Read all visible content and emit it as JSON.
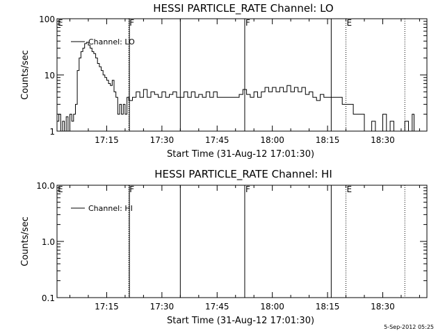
{
  "footer_date": "5-Sep-2012 05:25",
  "colors": {
    "background": "#ffffff",
    "ink": "#000000"
  },
  "chart_data": [
    {
      "type": "line",
      "title": "HESSI PARTICLE_RATE Channel: LO",
      "xlabel": "Start Time (31-Aug-12 17:01:30)",
      "ylabel": "Counts/sec",
      "yscale": "log",
      "ylim": [
        1,
        100
      ],
      "xlim": [
        "17:01:30",
        "18:42:00"
      ],
      "xticks": [
        "17:15",
        "17:30",
        "17:45",
        "18:00",
        "18:15",
        "18:30"
      ],
      "yticks": [
        "1",
        "10",
        "100"
      ],
      "legend": {
        "position": "top-left",
        "entries": [
          "Channel: LO"
        ]
      },
      "grid": false,
      "series": [
        {
          "name": "Channel: LO",
          "points": [
            [
              "17:01:30",
              1.5
            ],
            [
              "17:02:00",
              2
            ],
            [
              "17:02:30",
              1
            ],
            [
              "17:03:00",
              1.5
            ],
            [
              "17:03:30",
              1
            ],
            [
              "17:04:00",
              1.8
            ],
            [
              "17:04:30",
              1
            ],
            [
              "17:05:00",
              2
            ],
            [
              "17:05:30",
              1.5
            ],
            [
              "17:06:00",
              2
            ],
            [
              "17:06:30",
              3
            ],
            [
              "17:07:00",
              12
            ],
            [
              "17:07:30",
              20
            ],
            [
              "17:08:00",
              26
            ],
            [
              "17:08:30",
              30
            ],
            [
              "17:09:00",
              36
            ],
            [
              "17:09:30",
              38
            ],
            [
              "17:10:00",
              34
            ],
            [
              "17:10:30",
              30
            ],
            [
              "17:11:00",
              26
            ],
            [
              "17:11:30",
              24
            ],
            [
              "17:12:00",
              20
            ],
            [
              "17:12:30",
              16
            ],
            [
              "17:13:00",
              14
            ],
            [
              "17:13:30",
              12
            ],
            [
              "17:14:00",
              10
            ],
            [
              "17:14:30",
              9
            ],
            [
              "17:15:00",
              8
            ],
            [
              "17:15:30",
              7
            ],
            [
              "17:16:00",
              6.5
            ],
            [
              "17:16:30",
              8
            ],
            [
              "17:17:00",
              5
            ],
            [
              "17:17:30",
              4
            ],
            [
              "17:18:00",
              2
            ],
            [
              "17:18:30",
              3
            ],
            [
              "17:19:00",
              2
            ],
            [
              "17:19:30",
              3
            ],
            [
              "17:20:00",
              2
            ],
            [
              "17:20:30",
              4
            ],
            [
              "17:21:00",
              3.5
            ],
            [
              "17:22:00",
              4
            ],
            [
              "17:23:00",
              5
            ],
            [
              "17:24:00",
              4
            ],
            [
              "17:25:00",
              5.5
            ],
            [
              "17:26:00",
              4
            ],
            [
              "17:27:00",
              5
            ],
            [
              "17:28:00",
              4.5
            ],
            [
              "17:29:00",
              4
            ],
            [
              "17:30:00",
              5
            ],
            [
              "17:31:00",
              4
            ],
            [
              "17:32:00",
              4.5
            ],
            [
              "17:33:00",
              5
            ],
            [
              "17:34:00",
              4
            ],
            [
              "17:35:00",
              4
            ],
            [
              "17:36:00",
              5
            ],
            [
              "17:37:00",
              4
            ],
            [
              "17:38:00",
              5
            ],
            [
              "17:39:00",
              4
            ],
            [
              "17:40:00",
              4.5
            ],
            [
              "17:41:00",
              4
            ],
            [
              "17:42:00",
              5
            ],
            [
              "17:43:00",
              4
            ],
            [
              "17:44:00",
              5
            ],
            [
              "17:45:00",
              4
            ],
            [
              "17:46:00",
              4
            ],
            [
              "17:47:00",
              4
            ],
            [
              "17:48:00",
              4
            ],
            [
              "17:49:00",
              4
            ],
            [
              "17:50:00",
              4
            ],
            [
              "17:51:00",
              4.5
            ],
            [
              "17:52:00",
              5.5
            ],
            [
              "17:53:00",
              4.5
            ],
            [
              "17:54:00",
              4
            ],
            [
              "17:55:00",
              5
            ],
            [
              "17:56:00",
              4
            ],
            [
              "17:57:00",
              5
            ],
            [
              "17:58:00",
              6
            ],
            [
              "17:59:00",
              5
            ],
            [
              "18:00:00",
              6
            ],
            [
              "18:01:00",
              5
            ],
            [
              "18:02:00",
              6
            ],
            [
              "18:03:00",
              5
            ],
            [
              "18:04:00",
              6.5
            ],
            [
              "18:05:00",
              5
            ],
            [
              "18:06:00",
              6
            ],
            [
              "18:07:00",
              5
            ],
            [
              "18:08:00",
              6
            ],
            [
              "18:09:00",
              4.5
            ],
            [
              "18:10:00",
              5
            ],
            [
              "18:11:00",
              4
            ],
            [
              "18:12:00",
              3.5
            ],
            [
              "18:13:00",
              4.5
            ],
            [
              "18:14:00",
              4
            ],
            [
              "18:15:00",
              4
            ],
            [
              "18:16:00",
              4
            ],
            [
              "18:17:00",
              4
            ],
            [
              "18:18:00",
              4
            ],
            [
              "18:19:00",
              3
            ],
            [
              "18:20:00",
              3
            ],
            [
              "18:21:00",
              3
            ],
            [
              "18:22:00",
              2
            ],
            [
              "18:23:00",
              2
            ],
            [
              "18:24:00",
              2
            ],
            [
              "18:25:00",
              1
            ],
            [
              "18:26:00",
              1
            ],
            [
              "18:27:00",
              1.5
            ],
            [
              "18:28:00",
              1
            ],
            [
              "18:29:00",
              1
            ],
            [
              "18:30:00",
              2
            ],
            [
              "18:31:00",
              1
            ],
            [
              "18:32:00",
              1.5
            ],
            [
              "18:33:00",
              1
            ],
            [
              "18:34:00",
              1
            ],
            [
              "18:35:00",
              1
            ],
            [
              "18:36:00",
              1.5
            ],
            [
              "18:37:00",
              1
            ],
            [
              "18:38:00",
              2
            ],
            [
              "18:38:30",
              1
            ]
          ]
        }
      ],
      "markers": [
        {
          "time": "17:01:30",
          "label": "E",
          "style": "none"
        },
        {
          "time": "17:21:00",
          "label": "F",
          "style": "dotted"
        },
        {
          "time": "17:21:10",
          "label": "",
          "style": "solid"
        },
        {
          "time": "17:35:00",
          "label": "",
          "style": "solid"
        },
        {
          "time": "17:52:30",
          "label": "F",
          "style": "solid"
        },
        {
          "time": "18:16:00",
          "label": "",
          "style": "solid"
        },
        {
          "time": "18:20:00",
          "label": "E",
          "style": "dotted"
        },
        {
          "time": "18:36:00",
          "label": "",
          "style": "dotted"
        }
      ]
    },
    {
      "type": "line",
      "title": "HESSI PARTICLE_RATE Channel: HI",
      "xlabel": "Start Time (31-Aug-12 17:01:30)",
      "ylabel": "Counts/sec",
      "yscale": "log",
      "ylim": [
        0.1,
        10.0
      ],
      "xlim": [
        "17:01:30",
        "18:42:00"
      ],
      "xticks": [
        "17:15",
        "17:30",
        "17:45",
        "18:00",
        "18:15",
        "18:30"
      ],
      "yticks": [
        "0.1",
        "1.0",
        "10.0"
      ],
      "legend": {
        "position": "top-left",
        "entries": [
          "Channel: HI"
        ]
      },
      "grid": false,
      "series": [
        {
          "name": "Channel: HI",
          "points": []
        }
      ],
      "markers": [
        {
          "time": "17:01:30",
          "label": "E",
          "style": "none"
        },
        {
          "time": "17:21:00",
          "label": "F",
          "style": "dotted"
        },
        {
          "time": "17:21:10",
          "label": "",
          "style": "solid"
        },
        {
          "time": "17:35:00",
          "label": "",
          "style": "solid"
        },
        {
          "time": "17:52:30",
          "label": "F",
          "style": "solid"
        },
        {
          "time": "18:16:00",
          "label": "",
          "style": "solid"
        },
        {
          "time": "18:20:00",
          "label": "E",
          "style": "dotted"
        },
        {
          "time": "18:36:00",
          "label": "",
          "style": "dotted"
        }
      ]
    }
  ]
}
